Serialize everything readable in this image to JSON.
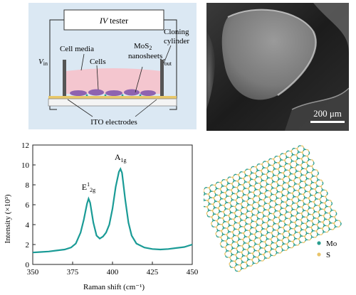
{
  "schematic": {
    "iv_tester_italic": "IV",
    "iv_tester_rest": " tester",
    "vin_v": "V",
    "vin_sub": "in",
    "vout_v": "V",
    "vout_sub": "out",
    "cell_media": "Cell media",
    "cells": "Cells",
    "mos2_line1_a": "MoS",
    "mos2_line1_sub": "2",
    "mos2_line2": "nanosheets",
    "cloning_line1": "Cloning",
    "cloning_line2": "cylinder",
    "ito": "ITO electrodes",
    "colors": {
      "background": "#dbe8f3",
      "media": "#f4c6cf",
      "cells": "#8e63b0",
      "electrode": "#e8c86a"
    }
  },
  "sem": {
    "scale_bar": "200 μm"
  },
  "chart_data": {
    "type": "line",
    "xlabel": "Raman shift (cm⁻¹)",
    "ylabel": "Intensity (×10³)",
    "xlim": [
      350,
      450
    ],
    "ylim": [
      0,
      12
    ],
    "xticks": [
      350,
      375,
      400,
      425,
      450
    ],
    "yticks": [
      0,
      2,
      4,
      6,
      8,
      10,
      12
    ],
    "grid": false,
    "color": "#1a9b96",
    "series": [
      {
        "x": [
          350,
          355,
          360,
          365,
          370,
          374,
          377,
          380,
          382,
          384,
          385,
          386,
          388,
          390,
          392,
          394,
          396,
          398,
          400,
          402,
          404,
          405,
          406,
          408,
          410,
          412,
          415,
          420,
          425,
          430,
          435,
          440,
          445,
          450
        ],
        "values": [
          1.2,
          1.25,
          1.3,
          1.4,
          1.5,
          1.7,
          2.1,
          3.2,
          4.5,
          6.1,
          6.6,
          6.2,
          4.2,
          2.9,
          2.6,
          2.8,
          3.2,
          4.0,
          5.6,
          7.8,
          9.3,
          9.6,
          9.2,
          6.5,
          4.2,
          2.9,
          2.1,
          1.7,
          1.55,
          1.5,
          1.55,
          1.65,
          1.75,
          2.0
        ]
      }
    ],
    "annotations": [
      {
        "text_main": "E",
        "sup": "1",
        "sub": "2g",
        "x": 385,
        "y": 7.2
      },
      {
        "text_main": "A",
        "sub": "1g",
        "x": 405,
        "y": 10.2
      }
    ]
  },
  "lattice": {
    "legend": [
      {
        "label": "Mo",
        "color": "#2a9d8f"
      },
      {
        "label": "S",
        "color": "#e9c46a"
      }
    ]
  }
}
